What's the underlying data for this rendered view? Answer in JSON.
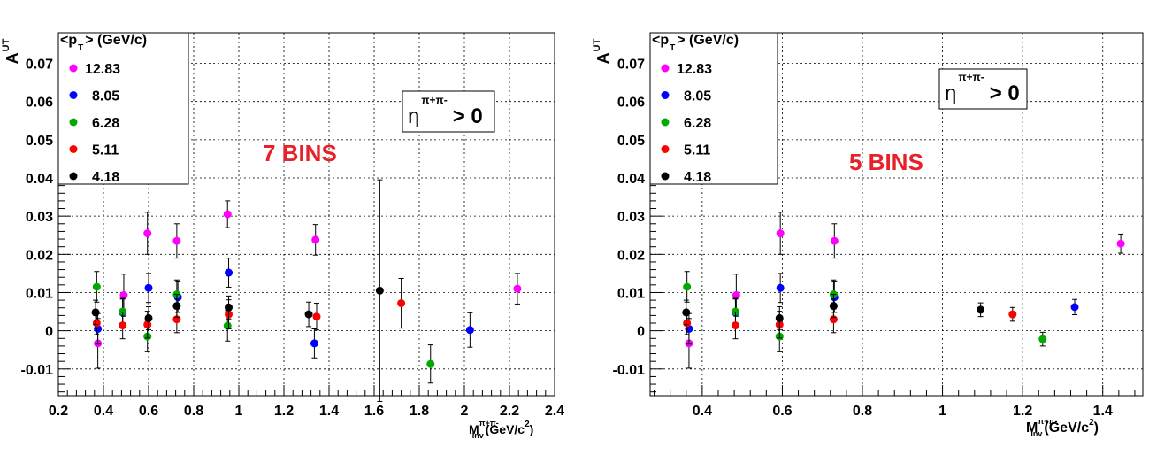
{
  "chart_data": [
    {
      "type": "scatter",
      "ylabel": "A",
      "ylabel_sub": "UT",
      "xlabel": "M",
      "xlabel_sub": "Inv",
      "xlabel_sup": "π+π-",
      "xlabel_unit": "(GeV/c",
      "xlabel_unit_sup": "2",
      "xlabel_unit_close": ")",
      "xlim": [
        0.2,
        2.4
      ],
      "ylim": [
        -0.017,
        0.078
      ],
      "xticks": [
        "0.2",
        "0.4",
        "0.6",
        "0.8",
        "1",
        "1.2",
        "1.4",
        "1.6",
        "1.8",
        "2",
        "2.2",
        "2.4"
      ],
      "xtick_values": [
        0.2,
        0.4,
        0.6,
        0.8,
        1.0,
        1.2,
        1.4,
        1.6,
        1.8,
        2.0,
        2.2,
        2.4
      ],
      "yticks": [
        "-0.01",
        "0",
        "0.01",
        "0.02",
        "0.03",
        "0.04",
        "0.05",
        "0.06",
        "0.07"
      ],
      "ytick_values": [
        -0.01,
        0,
        0.01,
        0.02,
        0.03,
        0.04,
        0.05,
        0.06,
        0.07
      ],
      "grid": true,
      "legend_title": "<p",
      "legend_title_sub": "T",
      "legend_title_rest": "> (GeV/c)",
      "legend_position": "top-left",
      "eta_label": "η",
      "eta_sup": "π+π-",
      "eta_rest": "> 0",
      "annotation": "7 BINS",
      "series": [
        {
          "name": "12.83",
          "color": "#ff00ff",
          "x": [
            0.375,
            0.49,
            0.595,
            0.725,
            0.95,
            1.34,
            2.235
          ],
          "y": [
            -0.0033,
            0.0093,
            0.0255,
            0.0235,
            0.0305,
            0.0238,
            0.011
          ],
          "err": [
            0.0065,
            0.0055,
            0.0055,
            0.0045,
            0.0035,
            0.004,
            0.004
          ]
        },
        {
          "name": "8.05",
          "color": "#0000ff",
          "x": [
            0.375,
            0.485,
            0.6,
            0.73,
            0.955,
            1.335,
            2.025
          ],
          "y": [
            0.0005,
            0.0048,
            0.0112,
            0.0088,
            0.0152,
            -0.0033,
            0.0002
          ],
          "err": [
            0.004,
            0.0035,
            0.0038,
            0.004,
            0.0038,
            0.0038,
            0.0045
          ]
        },
        {
          "name": "6.28",
          "color": "#00aa00",
          "x": [
            0.37,
            0.485,
            0.595,
            0.725,
            0.95,
            1.85
          ],
          "y": [
            0.0115,
            0.005,
            -0.0015,
            0.0095,
            0.0013,
            -0.0087
          ],
          "err": [
            0.004,
            0.0035,
            0.004,
            0.0038,
            0.004,
            0.005
          ]
        },
        {
          "name": "5.11",
          "color": "#ff0000",
          "x": [
            0.37,
            0.485,
            0.595,
            0.725,
            0.955,
            1.345,
            1.72
          ],
          "y": [
            0.002,
            0.0014,
            0.0016,
            0.003,
            0.0043,
            0.0037,
            0.0072
          ],
          "err": [
            0.003,
            0.0035,
            0.0035,
            0.0035,
            0.0038,
            0.0035,
            0.0065
          ]
        },
        {
          "name": "4.18",
          "color": "#000000",
          "x": [
            0.365,
            0.6,
            0.725,
            0.955,
            1.31,
            1.625
          ],
          "y": [
            0.0048,
            0.0033,
            0.0065,
            0.0061,
            0.0043,
            0.0105
          ],
          "err": [
            0.0032,
            0.003,
            0.003,
            0.003,
            0.0032,
            0.029
          ]
        }
      ]
    },
    {
      "type": "scatter",
      "ylabel": "A",
      "ylabel_sub": "UT",
      "xlabel": "M",
      "xlabel_sub": "Inv",
      "xlabel_sup": "π+π-",
      "xlabel_unit": "(GeV/c",
      "xlabel_unit_sup": "2",
      "xlabel_unit_close": ")",
      "xlim": [
        0.27,
        1.5
      ],
      "ylim": [
        -0.017,
        0.078
      ],
      "xticks": [
        "0.4",
        "0.6",
        "0.8",
        "1",
        "1.2",
        "1.4"
      ],
      "xtick_values": [
        0.4,
        0.6,
        0.8,
        1.0,
        1.2,
        1.4
      ],
      "yticks": [
        "-0.01",
        "0",
        "0.01",
        "0.02",
        "0.03",
        "0.04",
        "0.05",
        "0.06",
        "0.07"
      ],
      "ytick_values": [
        -0.01,
        0,
        0.01,
        0.02,
        0.03,
        0.04,
        0.05,
        0.06,
        0.07
      ],
      "grid": true,
      "legend_title": "<p",
      "legend_title_sub": "T",
      "legend_title_rest": "> (GeV/c)",
      "legend_position": "top-left",
      "eta_label": "η",
      "eta_sup": "π+π-",
      "eta_rest": "> 0",
      "annotation": "5 BINS",
      "series": [
        {
          "name": "12.83",
          "color": "#ff00ff",
          "x": [
            0.367,
            0.485,
            0.595,
            0.73,
            1.445
          ],
          "y": [
            -0.0033,
            0.0093,
            0.0255,
            0.0235,
            0.0228
          ],
          "err": [
            0.0065,
            0.0055,
            0.0055,
            0.0045,
            0.0025
          ]
        },
        {
          "name": "8.05",
          "color": "#0000ff",
          "x": [
            0.367,
            0.483,
            0.595,
            0.73,
            1.33
          ],
          "y": [
            0.0005,
            0.0048,
            0.0112,
            0.0088,
            0.0062
          ],
          "err": [
            0.004,
            0.0035,
            0.0038,
            0.004,
            0.002
          ]
        },
        {
          "name": "6.28",
          "color": "#00aa00",
          "x": [
            0.362,
            0.483,
            0.593,
            0.728,
            1.25
          ],
          "y": [
            0.0115,
            0.005,
            -0.0015,
            0.0095,
            -0.0022
          ],
          "err": [
            0.004,
            0.0035,
            0.004,
            0.0038,
            0.0018
          ]
        },
        {
          "name": "5.11",
          "color": "#ff0000",
          "x": [
            0.362,
            0.483,
            0.593,
            0.728,
            1.175
          ],
          "y": [
            0.002,
            0.0014,
            0.0016,
            0.003,
            0.0043
          ],
          "err": [
            0.003,
            0.0035,
            0.0035,
            0.0035,
            0.0018
          ]
        },
        {
          "name": "4.18",
          "color": "#000000",
          "x": [
            0.36,
            0.593,
            0.728,
            1.095
          ],
          "y": [
            0.0048,
            0.0033,
            0.0065,
            0.0055
          ],
          "err": [
            0.0032,
            0.003,
            0.003,
            0.0018
          ]
        }
      ]
    }
  ]
}
